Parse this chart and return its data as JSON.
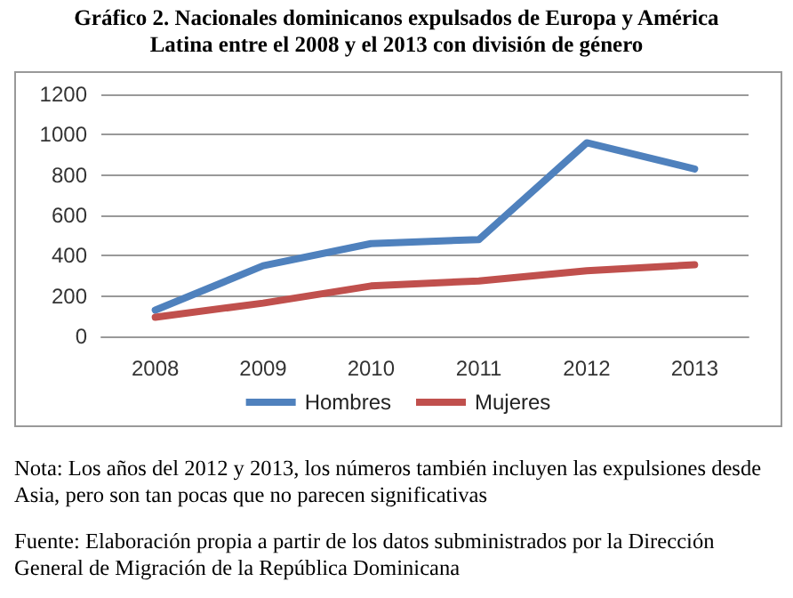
{
  "chart_data": {
    "type": "line",
    "title": "Gráfico 2. Nacionales dominicanos expulsados de Europa y América Latina entre el 2008 y el 2013 con división de género",
    "categories": [
      "2008",
      "2009",
      "2010",
      "2011",
      "2012",
      "2013"
    ],
    "series": [
      {
        "name": "Hombres",
        "color": "#4f81bd",
        "values": [
          130,
          350,
          460,
          480,
          960,
          830
        ]
      },
      {
        "name": "Mujeres",
        "color": "#c0504d",
        "values": [
          95,
          165,
          250,
          275,
          325,
          355
        ]
      }
    ],
    "ylim": [
      0,
      1200
    ],
    "yticks": [
      0,
      200,
      400,
      600,
      800,
      1000,
      1200
    ],
    "grid": "y",
    "legend": "bottom",
    "marker": "none",
    "line_style": "solid",
    "annotations": [
      "Nota: Los años del 2012 y 2013, los números también incluyen las expulsiones desde Asia, pero son tan pocas que no parecen significativas",
      "Fuente: Elaboración propia a partir de los datos subministrados por la Dirección General de Migración de la República Dominicana"
    ]
  }
}
